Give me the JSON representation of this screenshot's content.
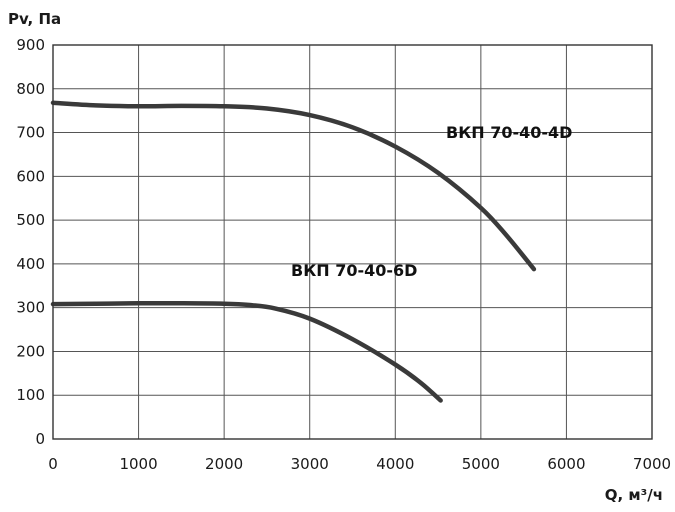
{
  "chart_data": {
    "type": "line",
    "title": "",
    "xlabel": "Q, м³/ч",
    "ylabel": "Pv, Па",
    "xlim": [
      0,
      7000
    ],
    "ylim": [
      0,
      900
    ],
    "x_ticks": [
      "0",
      "1000",
      "2000",
      "3000",
      "4000",
      "5000",
      "6000",
      "7000"
    ],
    "y_ticks": [
      "0",
      "100",
      "200",
      "300",
      "400",
      "500",
      "600",
      "700",
      "800",
      "900"
    ],
    "grid": true,
    "series": [
      {
        "name": "ВКП 70-40-4D",
        "x": [
          0,
          500,
          1000,
          1500,
          2000,
          2500,
          3000,
          3500,
          4000,
          4500,
          5000,
          5300,
          5620
        ],
        "y": [
          768,
          762,
          760,
          761,
          760,
          755,
          740,
          712,
          668,
          608,
          528,
          465,
          388
        ]
      },
      {
        "name": "ВКП 70-40-6D",
        "x": [
          0,
          500,
          1000,
          1500,
          2000,
          2300,
          2600,
          3000,
          3500,
          4000,
          4300,
          4530
        ],
        "y": [
          308,
          309,
          310,
          310,
          309,
          306,
          298,
          275,
          228,
          170,
          128,
          88
        ]
      }
    ]
  }
}
